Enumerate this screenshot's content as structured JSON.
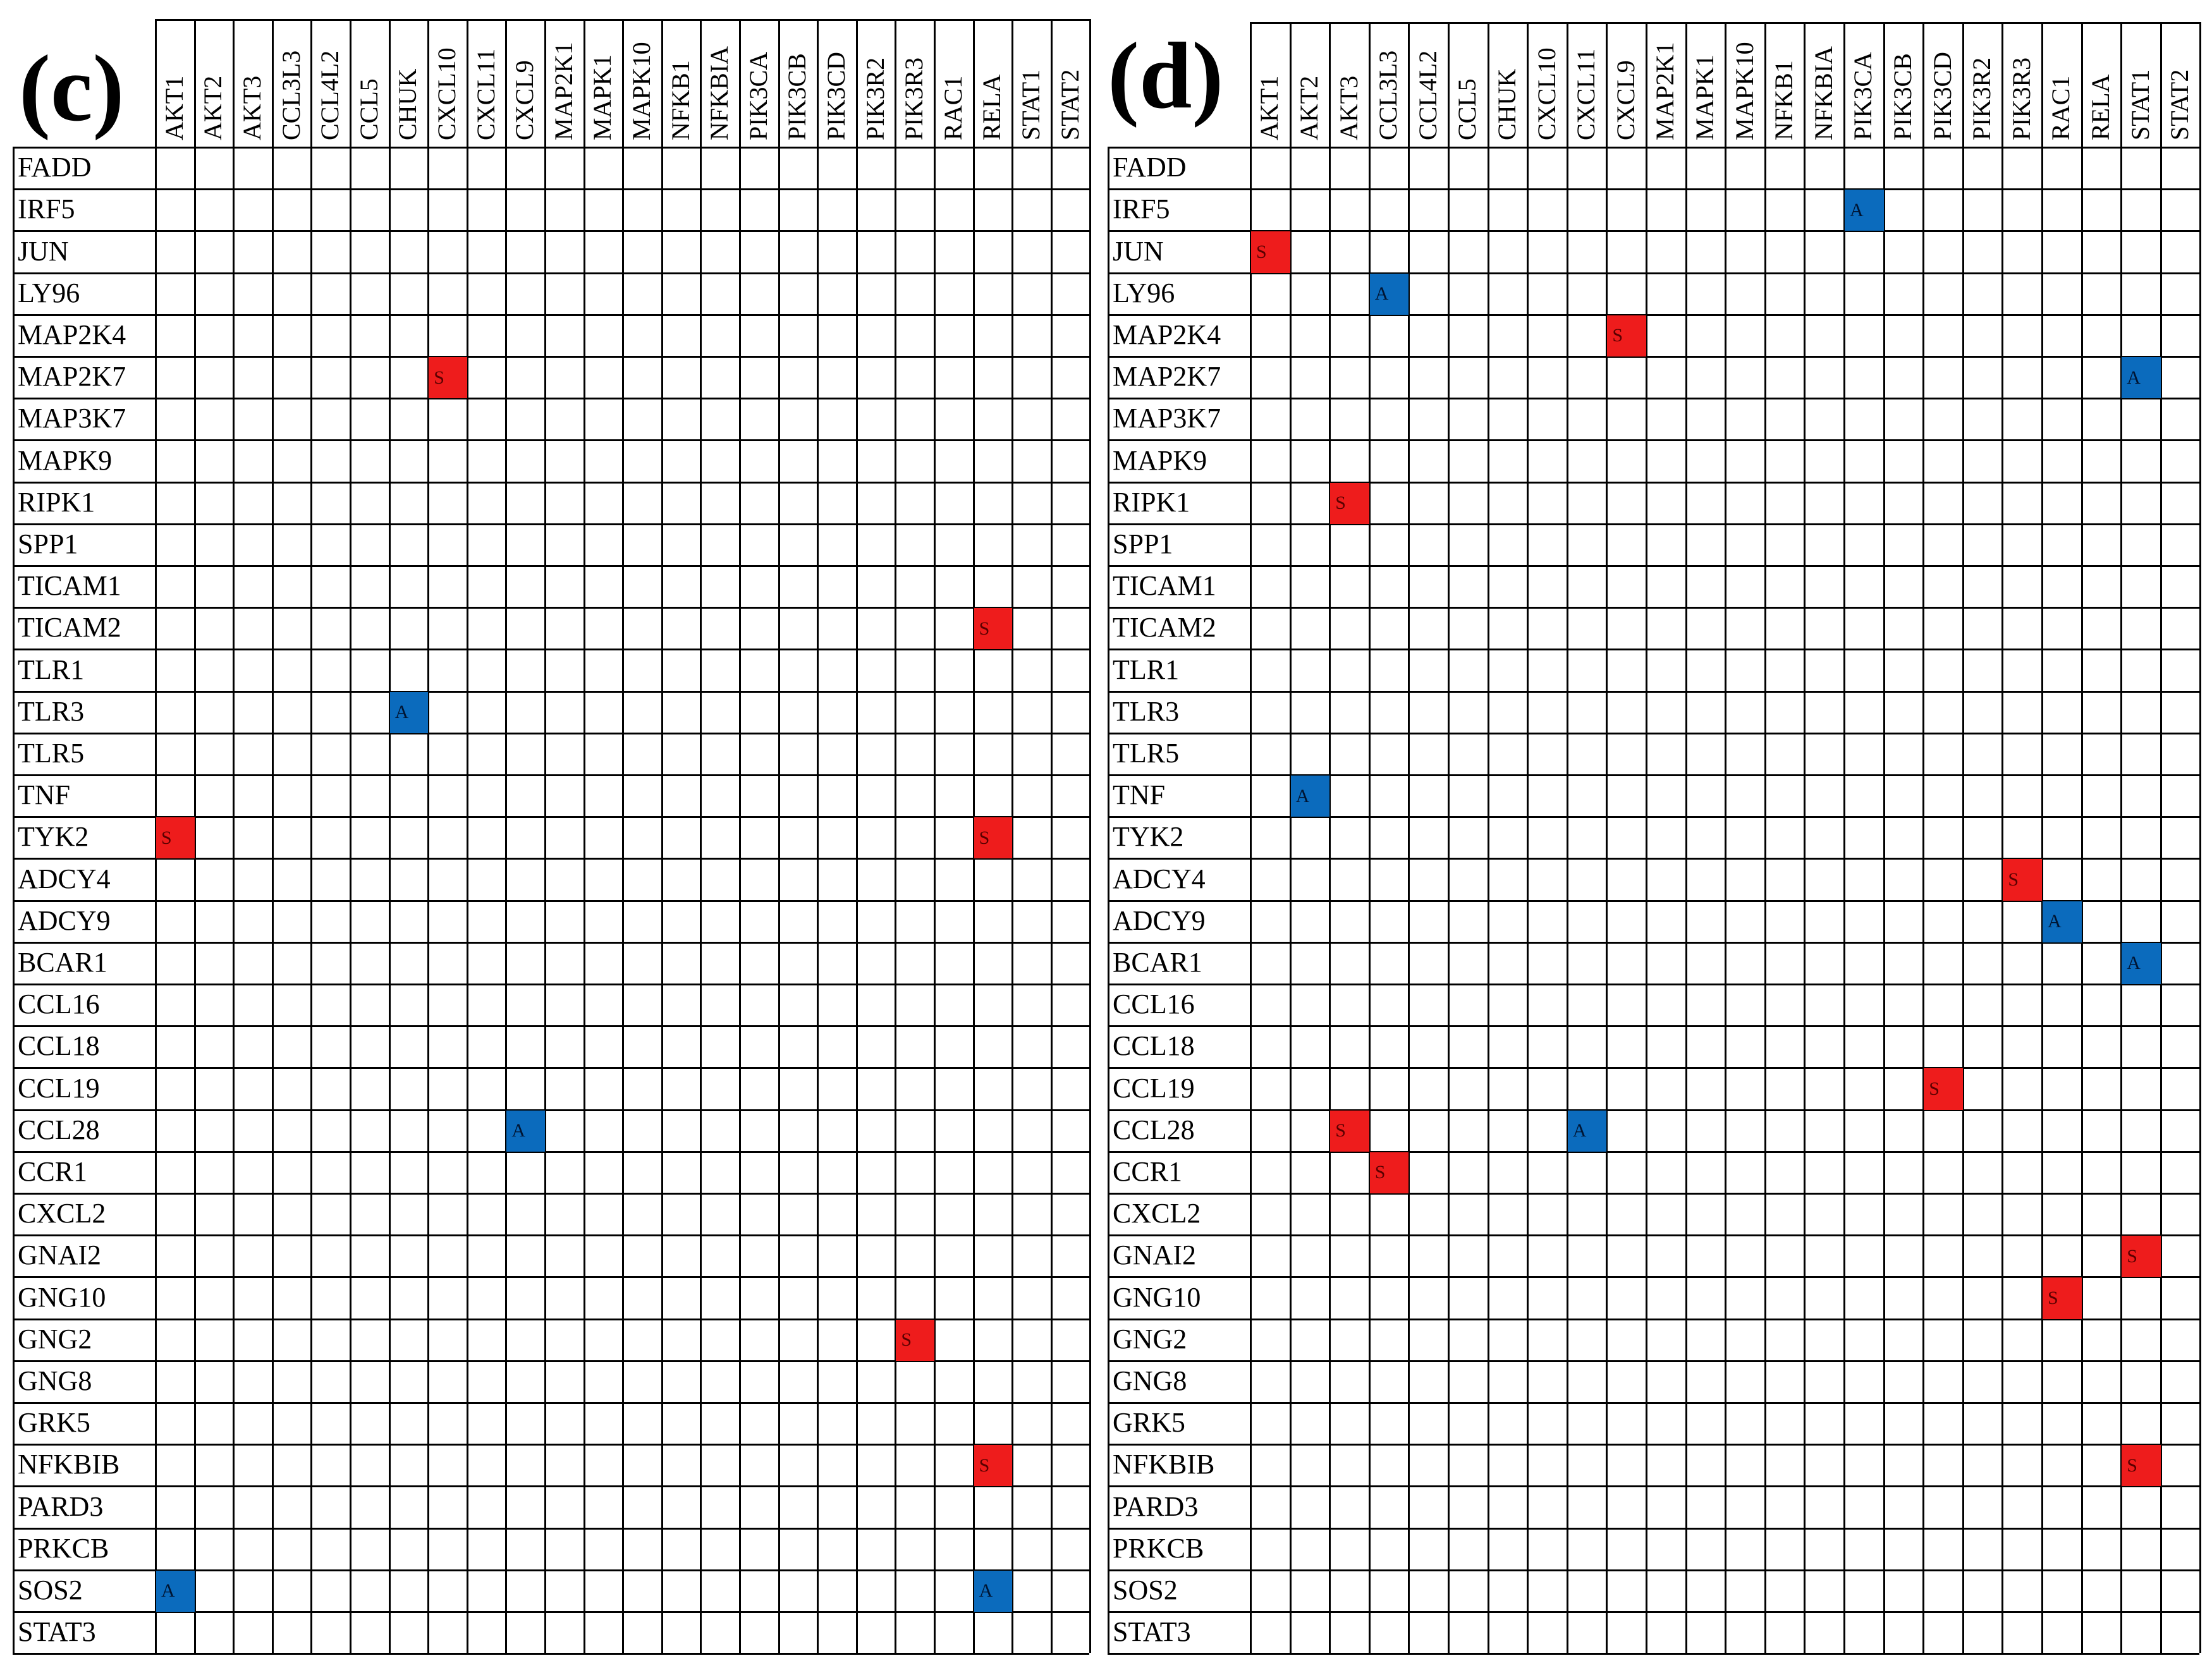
{
  "chart_data": [
    {
      "type": "heatmap",
      "panel_label": "(c)",
      "columns": [
        "AKT1",
        "AKT2",
        "AKT3",
        "CCL3L3",
        "CCL4L2",
        "CCL5",
        "CHUK",
        "CXCL10",
        "CXCL11",
        "CXCL9",
        "MAP2K1",
        "MAPK1",
        "MAPK10",
        "NFKB1",
        "NFKBIA",
        "PIK3CA",
        "PIK3CB",
        "PIK3CD",
        "PIK3R2",
        "PIK3R3",
        "RAC1",
        "RELA",
        "STAT1",
        "STAT2"
      ],
      "rows": [
        "FADD",
        "IRF5",
        "JUN",
        "LY96",
        "MAP2K4",
        "MAP2K7",
        "MAP3K7",
        "MAPK9",
        "RIPK1",
        "SPP1",
        "TICAM1",
        "TICAM2",
        "TLR1",
        "TLR3",
        "TLR5",
        "TNF",
        "TYK2",
        "ADCY4",
        "ADCY9",
        "BCAR1",
        "CCL16",
        "CCL18",
        "CCL19",
        "CCL28",
        "CCR1",
        "CXCL2",
        "GNAI2",
        "GNG10",
        "GNG2",
        "GNG8",
        "GRK5",
        "NFKBIB",
        "PARD3",
        "PRKCB",
        "SOS2",
        "STAT3"
      ],
      "cells": [
        {
          "row": "MAP2K7",
          "col": "CXCL10",
          "value": "S"
        },
        {
          "row": "TICAM2",
          "col": "RELA",
          "value": "S"
        },
        {
          "row": "TLR3",
          "col": "CHUK",
          "value": "A"
        },
        {
          "row": "TYK2",
          "col": "AKT1",
          "value": "S"
        },
        {
          "row": "TYK2",
          "col": "RELA",
          "value": "S"
        },
        {
          "row": "CCL28",
          "col": "CXCL9",
          "value": "A"
        },
        {
          "row": "GNG2",
          "col": "PIK3R3",
          "value": "S"
        },
        {
          "row": "NFKBIB",
          "col": "RELA",
          "value": "S"
        },
        {
          "row": "SOS2",
          "col": "AKT1",
          "value": "A"
        },
        {
          "row": "SOS2",
          "col": "RELA",
          "value": "A"
        }
      ]
    },
    {
      "type": "heatmap",
      "panel_label": "(d)",
      "columns": [
        "AKT1",
        "AKT2",
        "AKT3",
        "CCL3L3",
        "CCL4L2",
        "CCL5",
        "CHUK",
        "CXCL10",
        "CXCL11",
        "CXCL9",
        "MAP2K1",
        "MAPK1",
        "MAPK10",
        "NFKB1",
        "NFKBIA",
        "PIK3CA",
        "PIK3CB",
        "PIK3CD",
        "PIK3R2",
        "PIK3R3",
        "RAC1",
        "RELA",
        "STAT1",
        "STAT2"
      ],
      "rows": [
        "FADD",
        "IRF5",
        "JUN",
        "LY96",
        "MAP2K4",
        "MAP2K7",
        "MAP3K7",
        "MAPK9",
        "RIPK1",
        "SPP1",
        "TICAM1",
        "TICAM2",
        "TLR1",
        "TLR3",
        "TLR5",
        "TNF",
        "TYK2",
        "ADCY4",
        "ADCY9",
        "BCAR1",
        "CCL16",
        "CCL18",
        "CCL19",
        "CCL28",
        "CCR1",
        "CXCL2",
        "GNAI2",
        "GNG10",
        "GNG2",
        "GNG8",
        "GRK5",
        "NFKBIB",
        "PARD3",
        "PRKCB",
        "SOS2",
        "STAT3"
      ],
      "cells": [
        {
          "row": "IRF5",
          "col": "PIK3CA",
          "value": "A"
        },
        {
          "row": "JUN",
          "col": "AKT1",
          "value": "S"
        },
        {
          "row": "LY96",
          "col": "CCL3L3",
          "value": "A"
        },
        {
          "row": "MAP2K4",
          "col": "CXCL9",
          "value": "S"
        },
        {
          "row": "MAP2K7",
          "col": "STAT1",
          "value": "A"
        },
        {
          "row": "RIPK1",
          "col": "AKT3",
          "value": "S"
        },
        {
          "row": "TNF",
          "col": "AKT2",
          "value": "A"
        },
        {
          "row": "ADCY4",
          "col": "PIK3R3",
          "value": "S"
        },
        {
          "row": "ADCY9",
          "col": "RAC1",
          "value": "A"
        },
        {
          "row": "BCAR1",
          "col": "STAT1",
          "value": "A"
        },
        {
          "row": "CCL19",
          "col": "PIK3CD",
          "value": "S"
        },
        {
          "row": "CCL28",
          "col": "AKT3",
          "value": "S"
        },
        {
          "row": "CCL28",
          "col": "CXCL11",
          "value": "A"
        },
        {
          "row": "CCR1",
          "col": "CCL3L3",
          "value": "S"
        },
        {
          "row": "GNAI2",
          "col": "STAT1",
          "value": "S"
        },
        {
          "row": "GNG10",
          "col": "RAC1",
          "value": "S"
        },
        {
          "row": "NFKBIB",
          "col": "STAT1",
          "value": "S"
        }
      ]
    }
  ],
  "colors": {
    "S": "#ee1c1c",
    "A": "#0b6bbd",
    "S_text": "#5a0000",
    "A_text": "#001533",
    "grid": "#000000"
  }
}
